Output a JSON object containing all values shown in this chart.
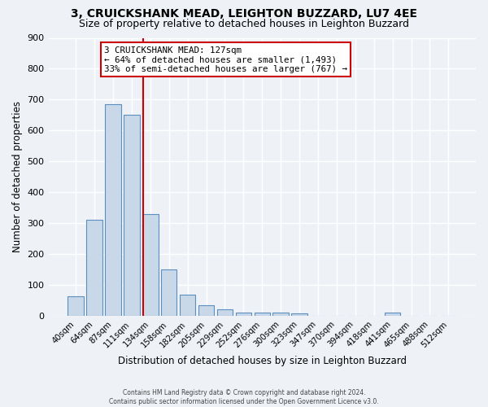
{
  "title1": "3, CRUICKSHANK MEAD, LEIGHTON BUZZARD, LU7 4EE",
  "title2": "Size of property relative to detached houses in Leighton Buzzard",
  "xlabel": "Distribution of detached houses by size in Leighton Buzzard",
  "ylabel": "Number of detached properties",
  "footer1": "Contains HM Land Registry data © Crown copyright and database right 2024.",
  "footer2": "Contains public sector information licensed under the Open Government Licence v3.0.",
  "categories": [
    "40sqm",
    "64sqm",
    "87sqm",
    "111sqm",
    "134sqm",
    "158sqm",
    "182sqm",
    "205sqm",
    "229sqm",
    "252sqm",
    "276sqm",
    "300sqm",
    "323sqm",
    "347sqm",
    "370sqm",
    "394sqm",
    "418sqm",
    "441sqm",
    "465sqm",
    "488sqm",
    "512sqm"
  ],
  "values": [
    65,
    310,
    685,
    650,
    330,
    150,
    68,
    35,
    22,
    12,
    12,
    10,
    8,
    0,
    0,
    0,
    0,
    10,
    0,
    0,
    0
  ],
  "bar_color": "#c8d8e8",
  "bar_edge_color": "#5a8fbf",
  "vline_color": "#cc0000",
  "vline_pos": 3.62,
  "annotation_text": "3 CRUICKSHANK MEAD: 127sqm\n← 64% of detached houses are smaller (1,493)\n33% of semi-detached houses are larger (767) →",
  "annotation_box_color": "#ffffff",
  "annotation_box_edge": "#cc0000",
  "ylim": [
    0,
    900
  ],
  "yticks": [
    0,
    100,
    200,
    300,
    400,
    500,
    600,
    700,
    800,
    900
  ],
  "bg_color": "#eef2f7",
  "grid_color": "#ffffff",
  "title1_fontsize": 10,
  "title2_fontsize": 9
}
